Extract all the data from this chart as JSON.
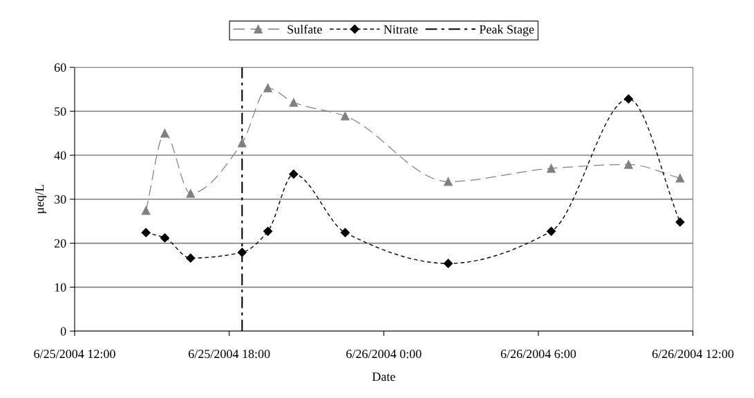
{
  "chart_data": {
    "type": "line",
    "xlabel": "Date",
    "ylabel": "µeq/L",
    "x": [
      "2004-06-25T14:46",
      "2004-06-25T15:30",
      "2004-06-25T16:30",
      "2004-06-25T18:30",
      "2004-06-25T19:30",
      "2004-06-25T20:30",
      "2004-06-25T22:30",
      "2004-06-26T02:30",
      "2004-06-26T06:30",
      "2004-06-26T09:30",
      "2004-06-26T11:30"
    ],
    "series": [
      {
        "name": "Sulfate",
        "color": "#808080",
        "marker": "triangle",
        "line_style": "dashed",
        "values": [
          27.4,
          45,
          31.3,
          42.8,
          55.3,
          52,
          48.9,
          34,
          37,
          37.9,
          34.8
        ]
      },
      {
        "name": "Nitrate",
        "color": "#000000",
        "marker": "diamond",
        "line_style": "dashed",
        "values": [
          22.4,
          21.2,
          16.6,
          17.9,
          22.7,
          35.7,
          22.4,
          15.4,
          22.7,
          52.8,
          24.8
        ]
      }
    ],
    "ref_lines": [
      {
        "axis": "x",
        "value": "2004-06-25T18:30",
        "label": "Peak Stage",
        "color": "#000000",
        "line_style": "dashdot"
      }
    ],
    "xlim": [
      "2004-06-25T12:00",
      "2004-06-26T12:00"
    ],
    "xticks": [
      {
        "value": "2004-06-25T12:00",
        "label": "6/25/2004 12:00"
      },
      {
        "value": "2004-06-25T18:00",
        "label": "6/25/2004 18:00"
      },
      {
        "value": "2004-06-26T00:00",
        "label": "6/26/2004 0:00"
      },
      {
        "value": "2004-06-26T06:00",
        "label": "6/26/2004 6:00"
      },
      {
        "value": "2004-06-26T12:00",
        "label": "6/26/2004 12:00"
      }
    ],
    "ylim": [
      0,
      60
    ],
    "yticks": [
      0,
      10,
      20,
      30,
      40,
      50,
      60
    ],
    "grid": "y",
    "legend": "top"
  }
}
